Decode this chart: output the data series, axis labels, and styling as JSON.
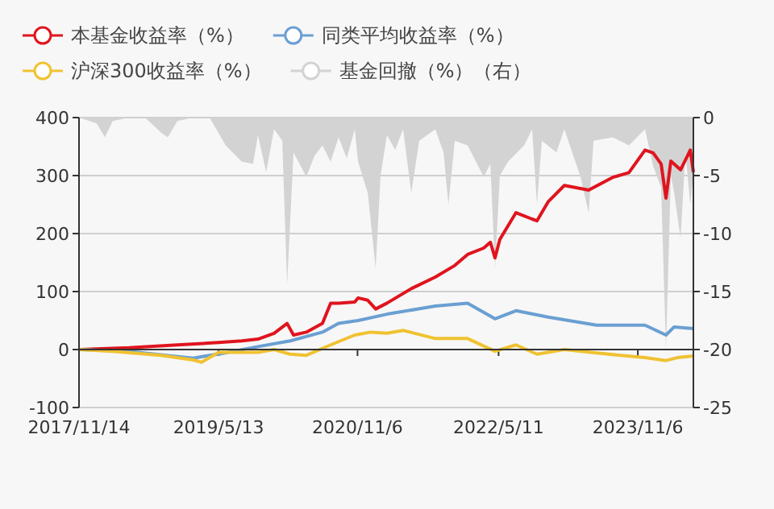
{
  "chart_data": {
    "type": "line",
    "legend": "top left",
    "grid": "y",
    "xlim": [
      "2017-11-14",
      "2024-06-10"
    ],
    "xticks": [
      {
        "value": "2017-11-14",
        "label": "2017/11/14"
      },
      {
        "value": "2019-05-13",
        "label": "2019/5/13"
      },
      {
        "value": "2020-11-06",
        "label": "2020/11/6"
      },
      {
        "value": "2022-05-11",
        "label": "2022/5/11"
      },
      {
        "value": "2023-11-06",
        "label": "2023/11/6"
      }
    ],
    "ylim": [
      -100,
      400
    ],
    "yticks": [
      -100,
      0,
      100,
      200,
      300,
      400
    ],
    "y2lim": [
      -25,
      0
    ],
    "y2ticks": [
      -25,
      -20,
      -15,
      -10,
      -5,
      0
    ],
    "series": [
      {
        "name": "基金回撤（%）（右）",
        "type": "area",
        "axis": "y2",
        "color": "#d3d3d3",
        "x": [
          "2017-11-14",
          "2018-01-22",
          "2018-02-23",
          "2018-03-26",
          "2018-05-28",
          "2018-07-30",
          "2018-10-01",
          "2018-10-27",
          "2018-12-03",
          "2019-02-04",
          "2019-04-08",
          "2019-06-10",
          "2019-08-12",
          "2019-09-25",
          "2019-10-14",
          "2019-11-15",
          "2019-12-16",
          "2020-01-17",
          "2020-02-05",
          "2020-03-01",
          "2020-04-20",
          "2020-05-22",
          "2020-06-22",
          "2020-07-24",
          "2020-08-24",
          "2020-09-25",
          "2020-10-26",
          "2020-11-08",
          "2020-12-16",
          "2021-01-16",
          "2021-02-04",
          "2021-03-01",
          "2021-04-02",
          "2021-05-03",
          "2021-06-04",
          "2021-07-05",
          "2021-09-06",
          "2021-10-08",
          "2021-10-27",
          "2021-11-21",
          "2022-01-10",
          "2022-03-14",
          "2022-04-09",
          "2022-04-27",
          "2022-05-16",
          "2022-06-17",
          "2022-08-19",
          "2022-09-19",
          "2022-10-08",
          "2022-10-27",
          "2022-12-23",
          "2023-01-23",
          "2023-03-27",
          "2023-04-28",
          "2023-05-17",
          "2023-07-31",
          "2023-10-02",
          "2023-12-04",
          "2024-01-05",
          "2024-02-05",
          "2024-02-24",
          "2024-03-14",
          "2024-03-27",
          "2024-04-21",
          "2024-05-10",
          "2024-05-29",
          "2024-06-10"
        ],
        "values": [
          0,
          -0.5,
          -1.7,
          -0.3,
          0,
          0,
          -1.3,
          -1.7,
          -0.3,
          0,
          0,
          -2.4,
          -3.8,
          -4,
          -1.5,
          -4.7,
          -1,
          -2,
          -14.4,
          -3,
          -5.1,
          -3.3,
          -2.4,
          -3.8,
          -1.7,
          -3.5,
          -1,
          -3.8,
          -6.5,
          -13,
          -5,
          -1.5,
          -2.8,
          -1,
          -6.5,
          -2,
          -1,
          -3,
          -7.5,
          -2,
          -2.4,
          -5.1,
          -4,
          -13,
          -5,
          -3.8,
          -2.4,
          -1,
          -7.5,
          -2,
          -3,
          -1,
          -5.1,
          -8.2,
          -2,
          -1.7,
          -2.4,
          -1,
          -4.2,
          -6,
          -20,
          -5,
          -6.5,
          -10.4,
          -3,
          -7.5,
          -5
        ]
      },
      {
        "name": "本基金收益率（%）",
        "color": "#e0141e",
        "x": [
          "2017-11-14",
          "2018-05-28",
          "2018-12-03",
          "2019-05-13",
          "2019-08-12",
          "2019-10-14",
          "2019-12-16",
          "2020-02-05",
          "2020-03-01",
          "2020-04-20",
          "2020-06-22",
          "2020-07-24",
          "2020-08-24",
          "2020-10-26",
          "2020-11-08",
          "2020-12-16",
          "2021-01-16",
          "2021-03-01",
          "2021-06-04",
          "2021-09-06",
          "2021-11-21",
          "2022-01-10",
          "2022-03-14",
          "2022-04-09",
          "2022-04-27",
          "2022-05-16",
          "2022-07-18",
          "2022-09-19",
          "2022-10-08",
          "2022-11-21",
          "2023-01-23",
          "2023-04-28",
          "2023-07-31",
          "2023-10-02",
          "2023-12-04",
          "2024-01-05",
          "2024-02-05",
          "2024-02-24",
          "2024-03-14",
          "2024-04-21",
          "2024-05-29",
          "2024-06-10"
        ],
        "values": [
          0,
          3,
          8,
          12,
          15,
          18,
          28,
          45,
          25,
          30,
          45,
          80,
          80,
          82,
          89,
          85,
          70,
          80,
          105,
          125,
          145,
          164,
          175,
          185,
          158,
          190,
          236,
          225,
          222,
          255,
          283,
          275,
          297,
          305,
          344,
          339,
          320,
          261,
          325,
          310,
          344,
          306
        ]
      },
      {
        "name": "同类平均收益率（%）",
        "color": "#6a9fd2",
        "x": [
          "2017-11-14",
          "2018-05-28",
          "2018-12-03",
          "2019-02-04",
          "2019-04-08",
          "2019-05-13",
          "2019-10-14",
          "2020-02-17",
          "2020-06-22",
          "2020-08-24",
          "2020-11-08",
          "2021-03-01",
          "2021-09-06",
          "2022-01-10",
          "2022-04-27",
          "2022-07-18",
          "2022-11-21",
          "2023-05-29",
          "2023-12-04",
          "2024-02-24",
          "2024-03-27",
          "2024-06-10"
        ],
        "values": [
          0,
          -3,
          -12,
          -15,
          -10,
          -8,
          5,
          15,
          30,
          45,
          50,
          61,
          75,
          80,
          53,
          67,
          56,
          42,
          42,
          25,
          39,
          36
        ]
      },
      {
        "name": "沪深300收益率（%）",
        "color": "#f0c232",
        "x": [
          "2017-11-14",
          "2018-03-26",
          "2018-10-01",
          "2019-02-04",
          "2019-03-08",
          "2019-05-13",
          "2019-10-14",
          "2019-12-16",
          "2020-02-17",
          "2020-04-20",
          "2020-07-24",
          "2020-10-26",
          "2020-12-28",
          "2021-03-01",
          "2021-05-03",
          "2021-09-06",
          "2022-01-10",
          "2022-04-27",
          "2022-07-18",
          "2022-10-08",
          "2023-01-23",
          "2023-05-29",
          "2023-12-04",
          "2024-02-24",
          "2024-04-08",
          "2024-06-10"
        ],
        "values": [
          0,
          -3,
          -10,
          -18,
          -22,
          -5,
          -5,
          0,
          -8,
          -10,
          8,
          25,
          30,
          28,
          33,
          19,
          19,
          -3,
          8,
          -8,
          0,
          -6,
          -14,
          -19,
          -14,
          -11
        ]
      }
    ]
  }
}
